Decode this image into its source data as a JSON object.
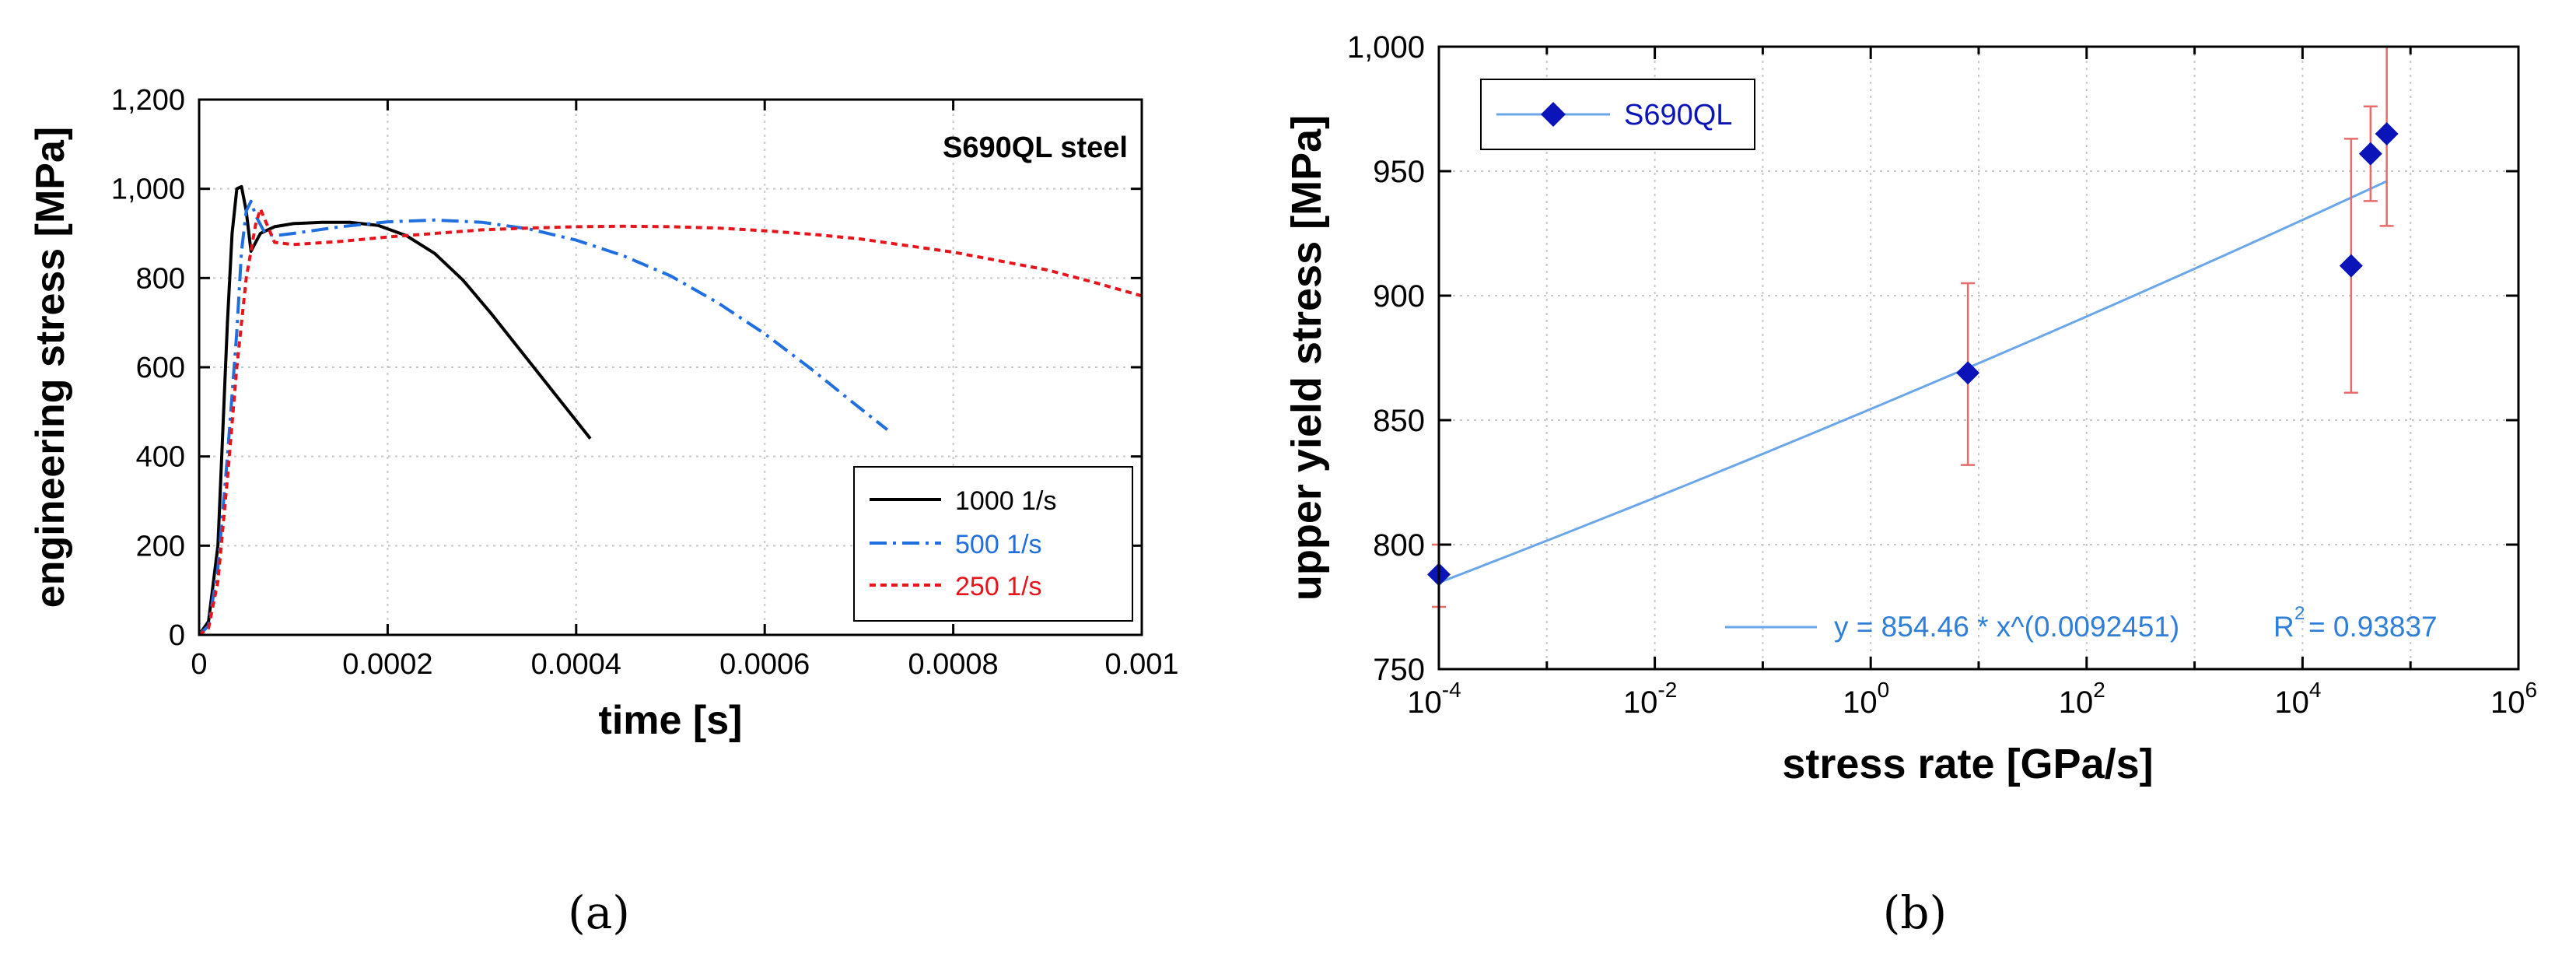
{
  "colors": {
    "black": "#000000",
    "blue_series": "#1f6fe0",
    "red_series": "#e8141b",
    "navy_marker": "#0b14b8",
    "fit_line": "#6aa6ea",
    "error_bar": "#e86a6a",
    "fit_text": "#2f7fd8",
    "grid": "#c8c8c8"
  },
  "chart_data": [
    {
      "id": "a",
      "type": "line",
      "caption": "(a)",
      "annotation": "S690QL steel",
      "xlabel": "time [s]",
      "ylabel": "engineering stress [MPa]",
      "xlim": [
        0,
        0.001
      ],
      "ylim": [
        0,
        1200
      ],
      "x_ticks": [
        0,
        0.0002,
        0.0004,
        0.0006,
        0.0008,
        0.001
      ],
      "x_tick_labels": [
        "0",
        "0.0002",
        "0.0004",
        "0.0006",
        "0.0008",
        "0.001"
      ],
      "y_ticks": [
        0,
        200,
        400,
        600,
        800,
        1000,
        1200
      ],
      "y_tick_labels": [
        "0",
        "200",
        "400",
        "600",
        "800",
        "1,000",
        "1,200"
      ],
      "grid": true,
      "legend_position": "bottom-right",
      "series": [
        {
          "name": "1000 1/s",
          "color": "#000000",
          "dash": "solid",
          "x": [
            0,
            1e-05,
            2e-05,
            2.5e-05,
            3e-05,
            3.5e-05,
            4e-05,
            4.5e-05,
            5e-05,
            5.5e-05,
            6e-05,
            6.5e-05,
            7e-05,
            8e-05,
            0.0001,
            0.00013,
            0.00016,
            0.00019,
            0.00022,
            0.00025,
            0.00028,
            0.00031,
            0.00034,
            0.00037,
            0.0004,
            0.000415
          ],
          "y": [
            0,
            30,
            200,
            450,
            700,
            900,
            1000,
            1005,
            950,
            860,
            880,
            900,
            905,
            915,
            922,
            925,
            925,
            918,
            895,
            855,
            795,
            720,
            640,
            560,
            480,
            440
          ]
        },
        {
          "name": "500 1/s",
          "color": "#1f6fe0",
          "dash": "dashdot",
          "x": [
            0,
            1e-05,
            2e-05,
            3e-05,
            4e-05,
            4.5e-05,
            5e-05,
            5.5e-05,
            6e-05,
            7e-05,
            8e-05,
            0.0001,
            0.00015,
            0.0002,
            0.00025,
            0.0003,
            0.00035,
            0.0004,
            0.00045,
            0.0005,
            0.00055,
            0.0006,
            0.00065,
            0.0007,
            0.00073
          ],
          "y": [
            0,
            20,
            150,
            400,
            680,
            860,
            950,
            972,
            940,
            900,
            895,
            900,
            915,
            926,
            930,
            925,
            910,
            885,
            850,
            805,
            745,
            675,
            595,
            510,
            460
          ]
        },
        {
          "name": "250 1/s",
          "color": "#e8141b",
          "dash": "dotted",
          "x": [
            0,
            1e-05,
            2e-05,
            3e-05,
            4e-05,
            5e-05,
            6e-05,
            6.5e-05,
            7e-05,
            8e-05,
            0.0001,
            0.00015,
            0.0002,
            0.00025,
            0.0003,
            0.00035,
            0.0004,
            0.00045,
            0.0005,
            0.00055,
            0.0006,
            0.00065,
            0.0007,
            0.00075,
            0.0008,
            0.00085,
            0.0009,
            0.00095,
            0.001
          ],
          "y": [
            0,
            15,
            120,
            350,
            600,
            800,
            920,
            955,
            930,
            880,
            875,
            882,
            892,
            900,
            908,
            912,
            915,
            916,
            915,
            912,
            906,
            898,
            888,
            873,
            858,
            838,
            818,
            790,
            760
          ]
        }
      ]
    },
    {
      "id": "b",
      "type": "scatter",
      "caption": "(b)",
      "xlabel": "stress rate [GPa/s]",
      "ylabel": "upper yield stress [MPa]",
      "x_scale": "log",
      "xlim_log10": [
        -4,
        6
      ],
      "ylim": [
        750,
        1000
      ],
      "x_tick_exponents": [
        "-4",
        "-2",
        "0",
        "2",
        "4",
        "6"
      ],
      "x_tick_base": "10",
      "y_ticks": [
        750,
        800,
        850,
        900,
        950,
        1000
      ],
      "y_tick_labels": [
        "750",
        "800",
        "850",
        "900",
        "950",
        "1,000"
      ],
      "grid": true,
      "legend_position": "top-left",
      "series": [
        {
          "name": "S690QL",
          "marker": "diamond",
          "color": "#0b14b8",
          "points": [
            {
              "log10_x": -4,
              "y": 788,
              "err_low": 775,
              "err_high": 800
            },
            {
              "log10_x": 0.9,
              "y": 869,
              "err_low": 832,
              "err_high": 905
            },
            {
              "log10_x": 4.45,
              "y": 912,
              "err_low": 861,
              "err_high": 963
            },
            {
              "log10_x": 4.63,
              "y": 957,
              "err_low": 938,
              "err_high": 976
            },
            {
              "log10_x": 4.78,
              "y": 965,
              "err_low": 928,
              "err_high": 1000
            }
          ]
        }
      ],
      "fit": {
        "a": 854.46,
        "b": 0.0092451,
        "log10_x_range": [
          -4,
          4.78
        ],
        "label": "y = 854.46 * x^(0.0092451)",
        "r2_prefix": "R",
        "r2_sup": "2",
        "r2_value": "= 0.93837"
      }
    }
  ]
}
